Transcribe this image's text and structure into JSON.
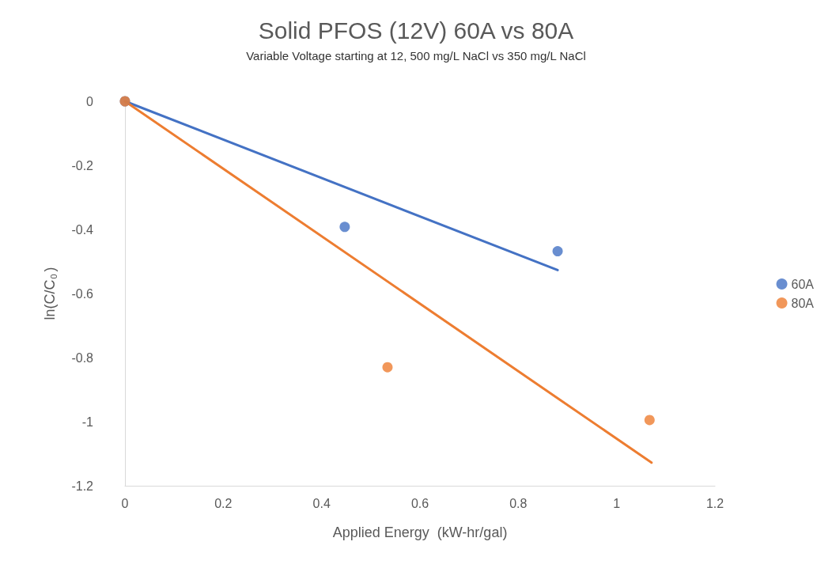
{
  "chart_data": {
    "type": "scatter",
    "title": "Solid PFOS (12V) 60A vs 80A",
    "subtitle": "Variable Voltage starting at 12, 500 mg/L NaCl vs 350 mg/L NaCl",
    "xlabel": "Applied Energy  (kW-hr/gal)",
    "ylabel": "ln(C/C$_{0}$)",
    "series": [
      {
        "name": "60A",
        "color": "#4472c4",
        "x": [
          0,
          0.447,
          0.88
        ],
        "values": [
          0,
          -0.392,
          -0.468
        ]
      },
      {
        "name": "80A",
        "color": "#ed7d31",
        "x": [
          0,
          0.534,
          1.067
        ],
        "values": [
          0,
          -0.83,
          -0.995
        ]
      },
      {
        "type": "line",
        "marker": "none",
        "color": "#4472c4",
        "x": [
          0,
          0.88
        ],
        "values": [
          0,
          -0.527
        ]
      },
      {
        "type": "line",
        "marker": "none",
        "color": "#ed7d31",
        "x": [
          0,
          1.071
        ],
        "values": [
          0,
          -1.128
        ]
      }
    ],
    "xlim": [
      0,
      1.2
    ],
    "xticks": [
      0,
      0.2,
      0.4,
      0.6,
      0.8,
      1,
      1.2
    ],
    "ylim": [
      -1.2,
      0
    ],
    "yticks": [
      -1.2,
      -1,
      -0.8,
      -0.6,
      -0.4,
      -0.2,
      0
    ],
    "grid": false,
    "legend": "right",
    "marker": "circle"
  }
}
